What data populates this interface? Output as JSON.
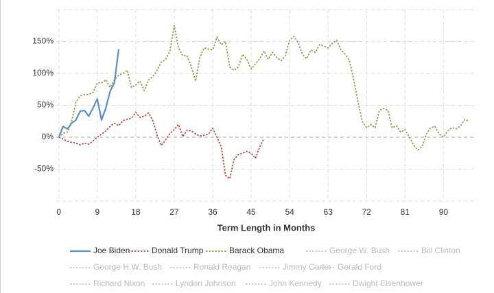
{
  "chart_data": {
    "type": "line",
    "x_label": "Term Length in Months",
    "xlim": [
      -0.6,
      97
    ],
    "xticks": [
      0,
      9,
      18,
      27,
      36,
      45,
      54,
      63,
      72,
      81,
      90
    ],
    "ylim": [
      -100,
      200
    ],
    "yticks": [
      {
        "value": -50,
        "label": "-50%"
      },
      {
        "value": 0,
        "label": "0%"
      },
      {
        "value": 50,
        "label": "50%"
      },
      {
        "value": 100,
        "label": "100%"
      },
      {
        "value": 150,
        "label": "150%"
      }
    ],
    "grid": true,
    "series": [
      {
        "name": "Joe Biden",
        "color": "#5b8ec4",
        "dash": false,
        "visible": true,
        "values": [
          0,
          17,
          13,
          22,
          27,
          41,
          42,
          33,
          46,
          60,
          27,
          46,
          72,
          85,
          138
        ]
      },
      {
        "name": "Donald Trump",
        "color": "#b54a48",
        "dash": true,
        "visible": true,
        "values": [
          0,
          -3,
          -6,
          -8,
          -9,
          -12,
          -9,
          -11,
          -6,
          0,
          5,
          10,
          17,
          22,
          18,
          26,
          28,
          30,
          39,
          31,
          33,
          38,
          26,
          3,
          -13,
          -4,
          6,
          12,
          20,
          1,
          11,
          10,
          5,
          2,
          3,
          5,
          14,
          0,
          -15,
          -60,
          -65,
          -35,
          -27,
          -25,
          -22,
          -25,
          -33,
          -15,
          -2
        ]
      },
      {
        "name": "Barack Obama",
        "color": "#949b4e",
        "dash": true,
        "visible": true,
        "values": [
          0,
          6,
          8,
          25,
          55,
          65,
          67,
          67,
          70,
          85,
          85,
          90,
          78,
          90,
          97,
          100,
          105,
          78,
          82,
          88,
          73,
          90,
          95,
          105,
          118,
          122,
          135,
          175,
          140,
          128,
          128,
          110,
          88,
          125,
          140,
          138,
          137,
          157,
          145,
          150,
          110,
          105,
          110,
          130,
          122,
          107,
          115,
          123,
          135,
          122,
          133,
          125,
          120,
          128,
          152,
          158,
          148,
          130,
          123,
          137,
          133,
          145,
          143,
          140,
          147,
          152,
          137,
          130,
          120,
          90,
          55,
          25,
          15,
          20,
          15,
          42,
          45,
          42,
          15,
          18,
          8,
          12,
          0,
          -12,
          -20,
          -15,
          5,
          15,
          17,
          5,
          0,
          10,
          15,
          13,
          18,
          28,
          25
        ]
      },
      {
        "name": "George W. Bush",
        "color": "#cccccc",
        "dash": true,
        "visible": false
      },
      {
        "name": "Bill Clinton",
        "color": "#cccccc",
        "dash": true,
        "visible": false
      },
      {
        "name": "George H.W. Bush",
        "color": "#cccccc",
        "dash": true,
        "visible": false
      },
      {
        "name": "Ronald Reagan",
        "color": "#cccccc",
        "dash": true,
        "visible": false
      },
      {
        "name": "Jimmy Carter",
        "color": "#cccccc",
        "dash": true,
        "visible": false
      },
      {
        "name": "Gerald Ford",
        "color": "#cccccc",
        "dash": true,
        "visible": false
      },
      {
        "name": "Richard Nixon",
        "color": "#cccccc",
        "dash": true,
        "visible": false
      },
      {
        "name": "Lyndon Johnson",
        "color": "#cccccc",
        "dash": true,
        "visible": false
      },
      {
        "name": "John Kennedy",
        "color": "#cccccc",
        "dash": true,
        "visible": false
      },
      {
        "name": "Dwight Eisenhower",
        "color": "#cccccc",
        "dash": true,
        "visible": false
      }
    ]
  }
}
